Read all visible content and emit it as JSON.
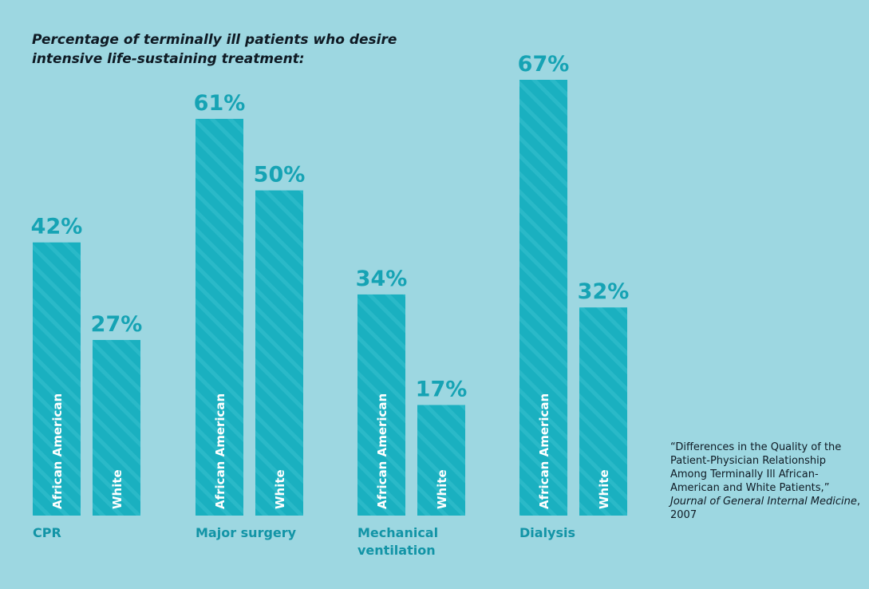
{
  "chart_data": {
    "type": "bar",
    "title_lines": [
      "Percentage of terminally ill patients who desire",
      "intensive life-sustaining treatment:"
    ],
    "categories": [
      "CPR",
      "Major surgery",
      "Mechanical ventilation",
      "Dialysis"
    ],
    "series": [
      {
        "name": "African American",
        "values": [
          42,
          61,
          34,
          67
        ]
      },
      {
        "name": "White",
        "values": [
          27,
          50,
          17,
          32
        ]
      }
    ],
    "value_suffix": "%",
    "ylim": [
      0,
      67
    ],
    "grid": false,
    "legend": "labels inside bars"
  },
  "source": {
    "text": "“Differences in the Quality of the Patient-Physician Relationship Among Terminally Ill African-American and White Patients,”",
    "journal": "Journal of General Internal Medicine",
    "year_suffix": ", 2007"
  },
  "colors": {
    "background": "#9dd7e1",
    "bar": "#1ab0c0",
    "bar_stripe": "#2ab9c8",
    "value_label": "#16a3b4",
    "category_label": "#1294a6"
  }
}
